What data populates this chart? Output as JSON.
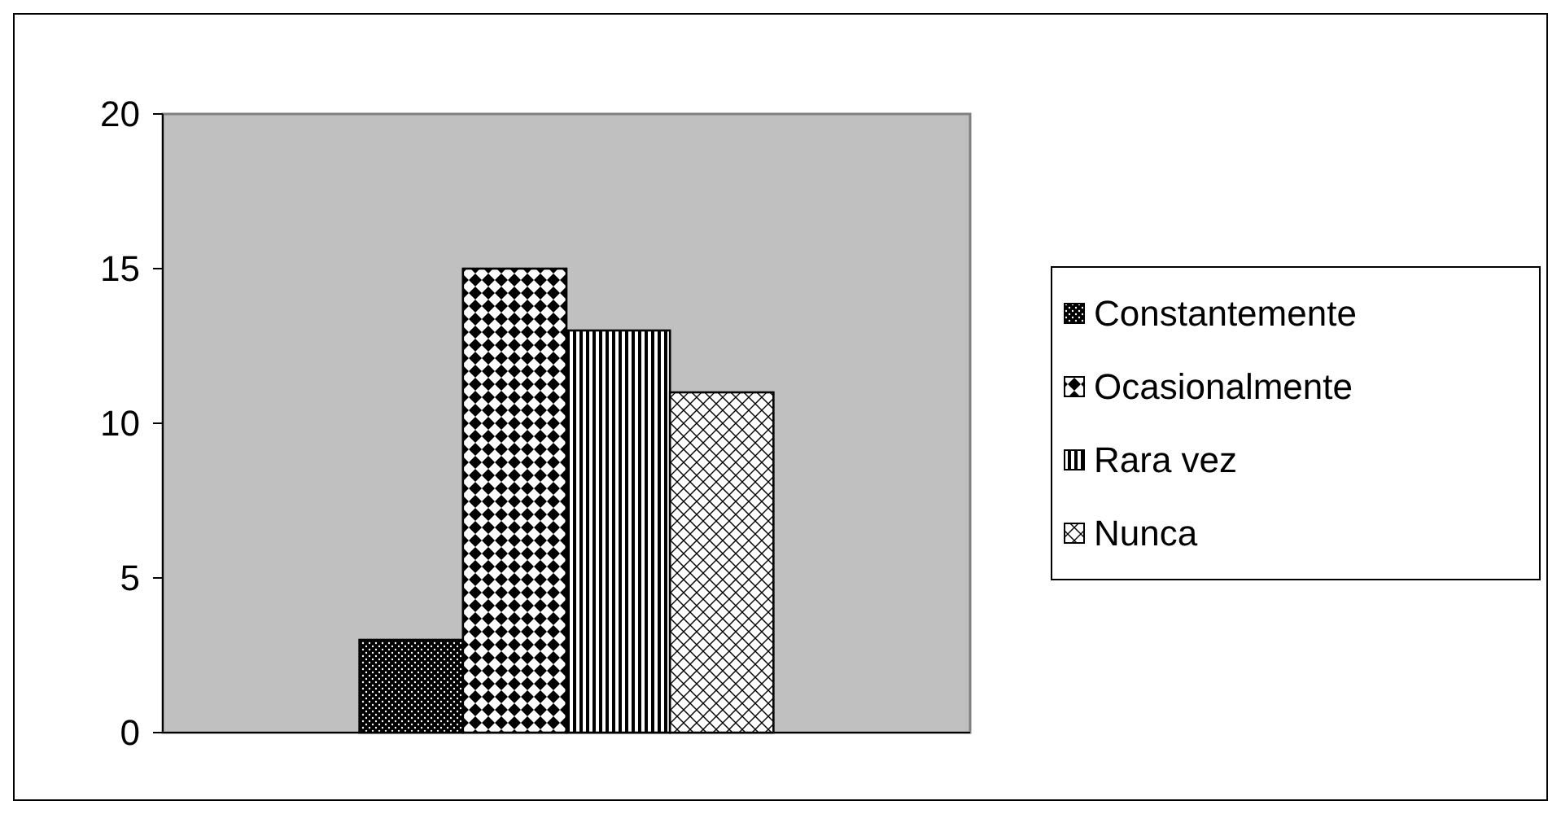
{
  "chart_data": {
    "type": "bar",
    "categories": [
      null
    ],
    "series": [
      {
        "name": "Constantemente",
        "color": "#000000",
        "values": [
          3
        ]
      },
      {
        "name": "Ocasionalmente",
        "color": "#000000",
        "values": [
          15
        ]
      },
      {
        "name": "Rara vez",
        "color": "#000000",
        "values": [
          13
        ]
      },
      {
        "name": "Nunca",
        "color": "#000000",
        "values": [
          11
        ]
      }
    ],
    "ylim": [
      0,
      20
    ],
    "yticks": [
      0,
      5,
      10,
      15,
      20
    ],
    "grid": false,
    "legend": "right"
  }
}
